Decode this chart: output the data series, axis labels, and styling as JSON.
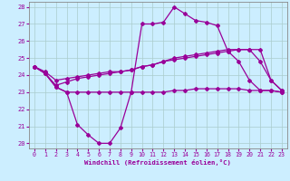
{
  "xlabel": "Windchill (Refroidissement éolien,°C)",
  "xlim": [
    -0.5,
    23.5
  ],
  "ylim": [
    19.7,
    28.3
  ],
  "yticks": [
    20,
    21,
    22,
    23,
    24,
    25,
    26,
    27,
    28
  ],
  "xticks": [
    0,
    1,
    2,
    3,
    4,
    5,
    6,
    7,
    8,
    9,
    10,
    11,
    12,
    13,
    14,
    15,
    16,
    17,
    18,
    19,
    20,
    21,
    22,
    23
  ],
  "bg_color": "#cceeff",
  "line_color": "#990099",
  "grid_color": "#aacccc",
  "line1_x": [
    0,
    1,
    2,
    3,
    4,
    5,
    6,
    7,
    8,
    9,
    10,
    11,
    12,
    13,
    14,
    15,
    16,
    17,
    18,
    19,
    20,
    21,
    22,
    23
  ],
  "line1_y": [
    24.5,
    24.1,
    23.3,
    23.0,
    21.1,
    20.5,
    20.0,
    20.0,
    20.9,
    23.0,
    27.0,
    27.0,
    27.1,
    28.0,
    27.6,
    27.2,
    27.1,
    26.9,
    25.4,
    24.8,
    23.7,
    23.1,
    23.1,
    23.0
  ],
  "line2_x": [
    0,
    1,
    2,
    3,
    4,
    5,
    6,
    7,
    8,
    9,
    10,
    11,
    12,
    13,
    14,
    15,
    16,
    17,
    18,
    19,
    20,
    21,
    22,
    23
  ],
  "line2_y": [
    24.5,
    24.1,
    23.3,
    23.0,
    23.0,
    23.0,
    23.0,
    23.0,
    23.0,
    23.0,
    23.0,
    23.0,
    23.0,
    23.1,
    23.1,
    23.2,
    23.2,
    23.2,
    23.2,
    23.2,
    23.1,
    23.1,
    23.1,
    23.0
  ],
  "line3_x": [
    0,
    1,
    2,
    3,
    4,
    5,
    6,
    7,
    8,
    9,
    10,
    11,
    12,
    13,
    14,
    15,
    16,
    17,
    18,
    19,
    20,
    21,
    22,
    23
  ],
  "line3_y": [
    24.5,
    24.1,
    23.4,
    23.6,
    23.8,
    23.9,
    24.0,
    24.1,
    24.2,
    24.3,
    24.5,
    24.6,
    24.8,
    24.9,
    25.0,
    25.1,
    25.2,
    25.3,
    25.4,
    25.5,
    25.5,
    24.8,
    23.7,
    23.1
  ],
  "line4_x": [
    0,
    1,
    2,
    3,
    4,
    5,
    6,
    7,
    8,
    9,
    10,
    11,
    12,
    13,
    14,
    15,
    16,
    17,
    18,
    19,
    20,
    21,
    22,
    23
  ],
  "line4_y": [
    24.5,
    24.2,
    23.7,
    23.8,
    23.9,
    24.0,
    24.1,
    24.2,
    24.2,
    24.3,
    24.5,
    24.6,
    24.8,
    25.0,
    25.1,
    25.2,
    25.3,
    25.4,
    25.5,
    25.5,
    25.5,
    25.5,
    23.7,
    23.1
  ]
}
